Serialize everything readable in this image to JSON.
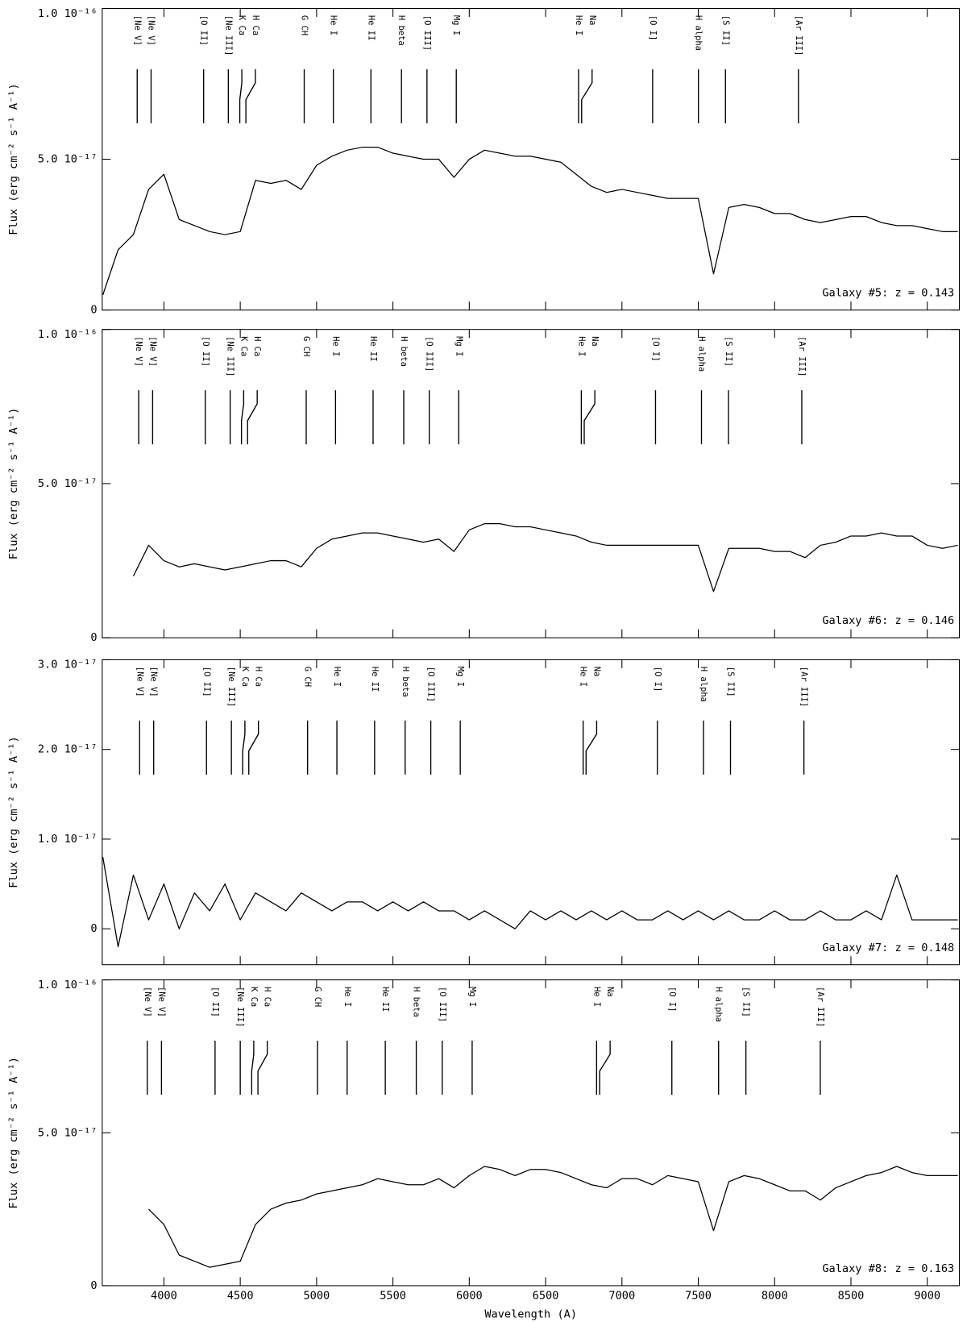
{
  "chart_data": [
    {
      "type": "line",
      "ylabel": "Flux (erg cm⁻² s⁻¹ A⁻¹)",
      "annotation": "Galaxy #5: z = 0.143",
      "xlim": [
        3596,
        9210
      ],
      "ylim": [
        0,
        1e-16
      ],
      "yticks": [
        0,
        {
          "value": 5e-17,
          "label": "5.0 10⁻¹⁷"
        },
        {
          "value": 1e-16,
          "label": "1.0 10⁻¹⁶"
        }
      ],
      "color": "#000000",
      "x": [
        3600,
        3700,
        3800,
        3900,
        4000,
        4100,
        4200,
        4300,
        4400,
        4500,
        4600,
        4700,
        4800,
        4900,
        5000,
        5100,
        5200,
        5300,
        5400,
        5500,
        5600,
        5700,
        5800,
        5900,
        6000,
        6100,
        6200,
        6300,
        6400,
        6500,
        6600,
        6700,
        6800,
        6900,
        7000,
        7100,
        7200,
        7300,
        7400,
        7500,
        7600,
        7700,
        7800,
        7900,
        8000,
        8100,
        8200,
        8300,
        8400,
        8500,
        8600,
        8700,
        8800,
        8900,
        9000,
        9100,
        9200
      ],
      "values": [
        5e-18,
        2e-17,
        2.5e-17,
        4e-17,
        4.5e-17,
        3e-17,
        2.8e-17,
        2.6e-17,
        2.5e-17,
        2.6e-17,
        4.3e-17,
        4.2e-17,
        4.3e-17,
        4e-17,
        4.8e-17,
        5.1e-17,
        5.3e-17,
        5.4e-17,
        5.4e-17,
        5.2e-17,
        5.1e-17,
        5e-17,
        5e-17,
        4.4e-17,
        5e-17,
        5.3e-17,
        5.2e-17,
        5.1e-17,
        5.1e-17,
        5e-17,
        4.9e-17,
        4.5e-17,
        4.1e-17,
        3.9e-17,
        4e-17,
        3.9e-17,
        3.8e-17,
        3.7e-17,
        3.7e-17,
        3.7e-17,
        1.2e-17,
        3.4e-17,
        3.5e-17,
        3.4e-17,
        3.2e-17,
        3.2e-17,
        3e-17,
        2.9e-17,
        3e-17,
        3.1e-17,
        3.1e-17,
        2.9e-17,
        2.8e-17,
        2.8e-17,
        2.7e-17,
        2.6e-17,
        2.6e-17
      ],
      "line_markers": {
        "labels": [
          "[Ne V]",
          "[Ne V]",
          "[O II]",
          "[Ne III]",
          "K Ca",
          "H Ca",
          "G CH",
          "He I",
          "He II",
          "H beta",
          "[O III]",
          "Mg I",
          "He I",
          "Na",
          "[O I]",
          "H alpha",
          "[S II]",
          "[Ar III]"
        ],
        "x": [
          3825,
          3916,
          4260,
          4422,
          4497,
          4537,
          4919,
          5110,
          5356,
          5556,
          5723,
          5915,
          6716,
          6736,
          7201,
          7501,
          7678,
          8156
        ]
      }
    },
    {
      "type": "line",
      "ylabel": "Flux (erg cm⁻² s⁻¹ A⁻¹)",
      "annotation": "Galaxy #6: z = 0.146",
      "xlim": [
        3596,
        9210
      ],
      "ylim": [
        0,
        1e-16
      ],
      "yticks": [
        0,
        {
          "value": 5e-17,
          "label": "5.0 10⁻¹⁷"
        },
        {
          "value": 1e-16,
          "label": "1.0 10⁻¹⁶"
        }
      ],
      "color": "#000000",
      "x": [
        3600,
        3700,
        3800,
        3900,
        4000,
        4100,
        4200,
        4300,
        4400,
        4500,
        4600,
        4700,
        4800,
        4900,
        5000,
        5100,
        5200,
        5300,
        5400,
        5500,
        5600,
        5700,
        5800,
        5900,
        6000,
        6100,
        6200,
        6300,
        6400,
        6500,
        6600,
        6700,
        6800,
        6900,
        7000,
        7100,
        7200,
        7300,
        7400,
        7500,
        7600,
        7700,
        7800,
        7900,
        8000,
        8100,
        8200,
        8300,
        8400,
        8500,
        8600,
        8700,
        8800,
        8900,
        9000,
        9100,
        9200
      ],
      "values": [
        null,
        null,
        2e-17,
        3e-17,
        2.5e-17,
        2.3e-17,
        2.4e-17,
        2.3e-17,
        2.2e-17,
        2.3e-17,
        2.4e-17,
        2.5e-17,
        2.5e-17,
        2.3e-17,
        2.9e-17,
        3.2e-17,
        3.3e-17,
        3.4e-17,
        3.4e-17,
        3.3e-17,
        3.2e-17,
        3.1e-17,
        3.2e-17,
        2.8e-17,
        3.5e-17,
        3.7e-17,
        3.7e-17,
        3.6e-17,
        3.6e-17,
        3.5e-17,
        3.4e-17,
        3.3e-17,
        3.1e-17,
        3e-17,
        3e-17,
        3e-17,
        3e-17,
        3e-17,
        3e-17,
        3e-17,
        1.5e-17,
        2.9e-17,
        2.9e-17,
        2.9e-17,
        2.8e-17,
        2.8e-17,
        2.6e-17,
        3e-17,
        3.1e-17,
        3.3e-17,
        3.3e-17,
        3.4e-17,
        3.3e-17,
        3.3e-17,
        3e-17,
        2.9e-17,
        3e-17
      ],
      "line_markers": {
        "labels": [
          "[Ne V]",
          "[Ne V]",
          "[O II]",
          "[Ne III]",
          "K Ca",
          "H Ca",
          "G CH",
          "He I",
          "He II",
          "H beta",
          "[O III]",
          "Mg I",
          "He I",
          "Na",
          "[O I]",
          "H alpha",
          "[S II]",
          "[Ar III]"
        ],
        "x": [
          3835,
          3926,
          4271,
          4434,
          4508,
          4548,
          4932,
          5124,
          5370,
          5571,
          5738,
          5931,
          6734,
          6753,
          7220,
          7521,
          7698,
          8178
        ]
      }
    },
    {
      "type": "line",
      "ylabel": "Flux (erg cm⁻² s⁻¹ A⁻¹)",
      "annotation": "Galaxy #7: z = 0.148",
      "xlim": [
        3596,
        9210
      ],
      "ylim": [
        -4e-18,
        3e-17
      ],
      "yticks": [
        0,
        {
          "value": 1e-17,
          "label": "1.0 10⁻¹⁷"
        },
        {
          "value": 2e-17,
          "label": "2.0 10⁻¹⁷"
        },
        {
          "value": 3e-17,
          "label": "3.0 10⁻¹⁷"
        }
      ],
      "color": "#000000",
      "x": [
        3600,
        3700,
        3800,
        3900,
        4000,
        4100,
        4200,
        4300,
        4400,
        4500,
        4600,
        4700,
        4800,
        4900,
        5000,
        5100,
        5200,
        5300,
        5400,
        5500,
        5600,
        5700,
        5800,
        5900,
        6000,
        6100,
        6200,
        6300,
        6400,
        6500,
        6600,
        6700,
        6800,
        6900,
        7000,
        7100,
        7200,
        7300,
        7400,
        7500,
        7600,
        7700,
        7800,
        7900,
        8000,
        8100,
        8200,
        8300,
        8400,
        8500,
        8600,
        8700,
        8800,
        8900,
        9000,
        9100,
        9200
      ],
      "values": [
        8e-18,
        -2e-18,
        6e-18,
        1e-18,
        5e-18,
        0,
        4e-18,
        2e-18,
        5e-18,
        1e-18,
        4e-18,
        3e-18,
        2e-18,
        4e-18,
        3e-18,
        2e-18,
        3e-18,
        3e-18,
        2e-18,
        3e-18,
        2e-18,
        3e-18,
        2e-18,
        2e-18,
        1e-18,
        2e-18,
        1e-18,
        0,
        2e-18,
        1e-18,
        2e-18,
        1e-18,
        2e-18,
        1e-18,
        2e-18,
        1e-18,
        1e-18,
        2e-18,
        1e-18,
        2e-18,
        1e-18,
        2e-18,
        1e-18,
        1e-18,
        2e-18,
        1e-18,
        1e-18,
        2e-18,
        1e-18,
        1e-18,
        2e-18,
        1e-18,
        6e-18,
        1e-18,
        1e-18,
        1e-18,
        1e-18
      ],
      "line_markers": {
        "labels": [
          "[Ne V]",
          "[Ne V]",
          "[O II]",
          "[Ne III]",
          "K Ca",
          "H Ca",
          "G CH",
          "He I",
          "He II",
          "H beta",
          "[O III]",
          "Mg I",
          "He I",
          "Na",
          "[O I]",
          "H alpha",
          "[S II]",
          "[Ar III]"
        ],
        "x": [
          3841,
          3933,
          4279,
          4442,
          4516,
          4556,
          4941,
          5133,
          5380,
          5580,
          5748,
          5941,
          6746,
          6765,
          7232,
          7534,
          7711,
          8192
        ]
      }
    },
    {
      "type": "line",
      "ylabel": "Flux (erg cm⁻² s⁻¹ A⁻¹)",
      "annotation": "Galaxy #8: z = 0.163",
      "xlabel": "Wavelength (A)",
      "xlim": [
        3596,
        9210
      ],
      "ylim": [
        0,
        1e-16
      ],
      "xticks": [
        4000,
        4500,
        5000,
        5500,
        6000,
        6500,
        7000,
        7500,
        8000,
        8500,
        9000
      ],
      "yticks": [
        0,
        {
          "value": 5e-17,
          "label": "5.0 10⁻¹⁷"
        },
        {
          "value": 1e-16,
          "label": "1.0 10⁻¹⁶"
        }
      ],
      "color": "#000000",
      "x": [
        3600,
        3700,
        3800,
        3900,
        4000,
        4100,
        4200,
        4300,
        4400,
        4500,
        4600,
        4700,
        4800,
        4900,
        5000,
        5100,
        5200,
        5300,
        5400,
        5500,
        5600,
        5700,
        5800,
        5900,
        6000,
        6100,
        6200,
        6300,
        6400,
        6500,
        6600,
        6700,
        6800,
        6900,
        7000,
        7100,
        7200,
        7300,
        7400,
        7500,
        7600,
        7700,
        7800,
        7900,
        8000,
        8100,
        8200,
        8300,
        8400,
        8500,
        8600,
        8700,
        8800,
        8900,
        9000,
        9100,
        9200
      ],
      "values": [
        null,
        null,
        null,
        2.5e-17,
        2e-17,
        1e-17,
        8e-18,
        6e-18,
        7e-18,
        8e-18,
        2e-17,
        2.5e-17,
        2.7e-17,
        2.8e-17,
        3e-17,
        3.1e-17,
        3.2e-17,
        3.3e-17,
        3.5e-17,
        3.4e-17,
        3.3e-17,
        3.3e-17,
        3.5e-17,
        3.2e-17,
        3.6e-17,
        3.9e-17,
        3.8e-17,
        3.6e-17,
        3.8e-17,
        3.8e-17,
        3.7e-17,
        3.5e-17,
        3.3e-17,
        3.2e-17,
        3.5e-17,
        3.5e-17,
        3.3e-17,
        3.6e-17,
        3.5e-17,
        3.4e-17,
        1.8e-17,
        3.4e-17,
        3.6e-17,
        3.5e-17,
        3.3e-17,
        3.1e-17,
        3.1e-17,
        2.8e-17,
        3.2e-17,
        3.4e-17,
        3.6e-17,
        3.7e-17,
        3.9e-17,
        3.7e-17,
        3.6e-17,
        3.6e-17,
        3.6e-17
      ],
      "line_markers": {
        "labels": [
          "[Ne V]",
          "[Ne V]",
          "[O II]",
          "[Ne III]",
          "K Ca",
          "H Ca",
          "G CH",
          "He I",
          "He II",
          "H beta",
          "[O III]",
          "Mg I",
          "He I",
          "Na",
          "[O I]",
          "H alpha",
          "[S II]",
          "[Ar III]"
        ],
        "x": [
          3891,
          3984,
          4335,
          4500,
          4575,
          4616,
          5006,
          5200,
          5450,
          5653,
          5823,
          6019,
          6834,
          6854,
          7327,
          7633,
          7812,
          8299
        ]
      }
    }
  ]
}
